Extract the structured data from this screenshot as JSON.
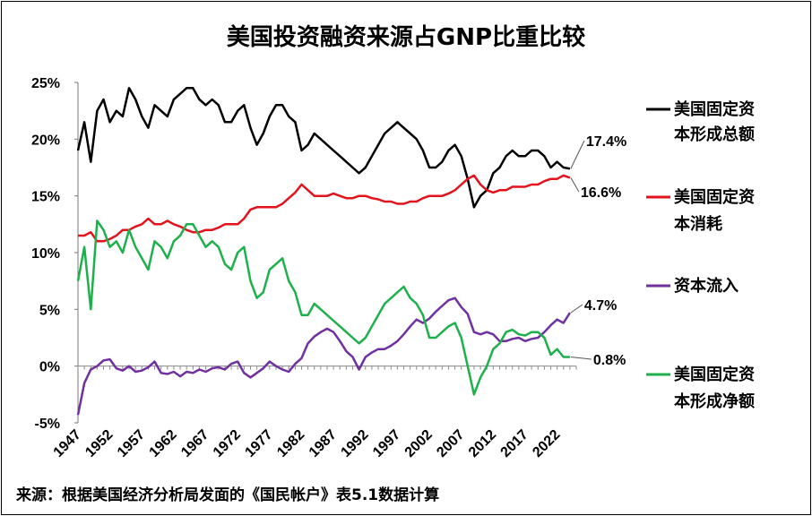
{
  "chart_data": {
    "type": "line",
    "title": "美国投资融资来源占GNP比重比较",
    "source": "来源：根据美国经济分析局发面的《国民帐户》表5.1数据计算",
    "x_ticks": [
      "1947",
      "1952",
      "1957",
      "1962",
      "1967",
      "1972",
      "1977",
      "1982",
      "1987",
      "1992",
      "1997",
      "2002",
      "2007",
      "2012",
      "2017",
      "2022"
    ],
    "y_ticks": [
      "25%",
      "20%",
      "15%",
      "10%",
      "5%",
      "0%",
      "-5%"
    ],
    "ylim": [
      -5,
      25
    ],
    "xlim": [
      1947,
      2025
    ],
    "grid": false,
    "legend_position": "right",
    "series": [
      {
        "name": "美国固定资本形成总额",
        "name_lines": [
          "美国固定资",
          "本形成总额"
        ],
        "color": "#000000",
        "end_label": "17.4%",
        "x": [
          1947,
          1948,
          1949,
          1950,
          1951,
          1952,
          1953,
          1954,
          1955,
          1956,
          1957,
          1958,
          1959,
          1960,
          1961,
          1962,
          1963,
          1964,
          1965,
          1966,
          1967,
          1968,
          1969,
          1970,
          1971,
          1972,
          1973,
          1974,
          1975,
          1976,
          1977,
          1978,
          1979,
          1980,
          1981,
          1982,
          1983,
          1984,
          1985,
          1986,
          1987,
          1988,
          1989,
          1990,
          1991,
          1992,
          1993,
          1994,
          1995,
          1996,
          1997,
          1998,
          1999,
          2000,
          2001,
          2002,
          2003,
          2004,
          2005,
          2006,
          2007,
          2008,
          2009,
          2010,
          2011,
          2012,
          2013,
          2014,
          2015,
          2016,
          2017,
          2018,
          2019,
          2020,
          2021,
          2022,
          2023,
          2024
        ],
        "values": [
          19.0,
          21.5,
          18.0,
          22.5,
          23.5,
          21.5,
          22.5,
          22.0,
          24.5,
          23.5,
          22.0,
          21.0,
          23.0,
          22.5,
          22.0,
          23.5,
          24.0,
          24.5,
          24.5,
          23.5,
          23.0,
          23.5,
          23.0,
          21.5,
          21.5,
          22.5,
          23.0,
          21.0,
          19.5,
          20.5,
          22.0,
          23.0,
          23.0,
          22.0,
          21.5,
          19.0,
          19.5,
          20.5,
          20.0,
          19.5,
          19.0,
          18.5,
          18.0,
          17.5,
          17.0,
          17.5,
          18.5,
          19.5,
          20.5,
          21.0,
          21.5,
          21.0,
          20.5,
          20.0,
          19.0,
          17.5,
          17.5,
          18.0,
          19.0,
          19.5,
          18.5,
          16.5,
          14.0,
          15.0,
          15.5,
          17.0,
          17.5,
          18.5,
          19.0,
          18.5,
          18.5,
          19.0,
          19.0,
          18.5,
          17.5,
          18.0,
          17.5,
          17.4
        ]
      },
      {
        "name": "美国固定资本消耗",
        "name_lines": [
          "美国固定资",
          "本消耗"
        ],
        "color": "#e3121b",
        "end_label": "16.6%",
        "x": [
          1947,
          1948,
          1949,
          1950,
          1951,
          1952,
          1953,
          1954,
          1955,
          1956,
          1957,
          1958,
          1959,
          1960,
          1961,
          1962,
          1963,
          1964,
          1965,
          1966,
          1967,
          1968,
          1969,
          1970,
          1971,
          1972,
          1973,
          1974,
          1975,
          1976,
          1977,
          1978,
          1979,
          1980,
          1981,
          1982,
          1983,
          1984,
          1985,
          1986,
          1987,
          1988,
          1989,
          1990,
          1991,
          1992,
          1993,
          1994,
          1995,
          1996,
          1997,
          1998,
          1999,
          2000,
          2001,
          2002,
          2003,
          2004,
          2005,
          2006,
          2007,
          2008,
          2009,
          2010,
          2011,
          2012,
          2013,
          2014,
          2015,
          2016,
          2017,
          2018,
          2019,
          2020,
          2021,
          2022,
          2023,
          2024
        ],
        "values": [
          11.5,
          11.5,
          11.8,
          11.0,
          11.0,
          11.2,
          11.5,
          12.0,
          12.0,
          12.3,
          12.5,
          13.0,
          12.5,
          12.5,
          12.8,
          12.5,
          12.3,
          12.0,
          11.8,
          11.8,
          12.0,
          12.0,
          12.2,
          12.5,
          12.5,
          12.5,
          13.0,
          13.8,
          14.0,
          14.0,
          14.0,
          14.0,
          14.3,
          14.8,
          15.3,
          16.0,
          15.5,
          15.0,
          15.0,
          15.0,
          15.2,
          15.0,
          14.8,
          14.8,
          15.0,
          15.0,
          14.8,
          14.7,
          14.5,
          14.5,
          14.3,
          14.3,
          14.5,
          14.5,
          14.8,
          15.0,
          15.0,
          15.0,
          15.2,
          15.5,
          16.0,
          16.5,
          16.8,
          16.0,
          15.5,
          15.3,
          15.5,
          15.5,
          15.8,
          15.8,
          15.8,
          16.0,
          16.0,
          16.3,
          16.5,
          16.5,
          16.8,
          16.6
        ]
      },
      {
        "name": "资本流入",
        "name_lines": [
          "资本流入"
        ],
        "color": "#7030a0",
        "end_label": "4.7%",
        "x": [
          1947,
          1948,
          1949,
          1950,
          1951,
          1952,
          1953,
          1954,
          1955,
          1956,
          1957,
          1958,
          1959,
          1960,
          1961,
          1962,
          1963,
          1964,
          1965,
          1966,
          1967,
          1968,
          1969,
          1970,
          1971,
          1972,
          1973,
          1974,
          1975,
          1976,
          1977,
          1978,
          1979,
          1980,
          1981,
          1982,
          1983,
          1984,
          1985,
          1986,
          1987,
          1988,
          1989,
          1990,
          1991,
          1992,
          1993,
          1994,
          1995,
          1996,
          1997,
          1998,
          1999,
          2000,
          2001,
          2002,
          2003,
          2004,
          2005,
          2006,
          2007,
          2008,
          2009,
          2010,
          2011,
          2012,
          2013,
          2014,
          2015,
          2016,
          2017,
          2018,
          2019,
          2020,
          2021,
          2022,
          2023,
          2024
        ],
        "values": [
          -4.3,
          -1.5,
          -0.3,
          0.0,
          0.5,
          0.6,
          -0.2,
          -0.4,
          0.0,
          -0.5,
          -0.4,
          -0.1,
          0.4,
          -0.6,
          -0.7,
          -0.5,
          -0.9,
          -0.5,
          -0.6,
          -0.3,
          -0.5,
          -0.2,
          -0.1,
          -0.3,
          0.2,
          0.4,
          -0.6,
          -1.0,
          -0.6,
          -0.2,
          0.4,
          0.0,
          -0.3,
          -0.5,
          0.2,
          0.7,
          2.0,
          2.6,
          3.0,
          3.3,
          3.0,
          2.2,
          1.3,
          0.8,
          -0.3,
          0.8,
          1.2,
          1.5,
          1.5,
          1.8,
          2.2,
          2.8,
          3.5,
          4.1,
          3.8,
          4.2,
          4.8,
          5.3,
          5.8,
          6.0,
          5.2,
          4.6,
          3.0,
          2.8,
          3.0,
          2.8,
          2.2,
          2.2,
          2.4,
          2.5,
          2.2,
          2.4,
          2.5,
          3.0,
          3.6,
          4.1,
          3.8,
          4.7
        ]
      },
      {
        "name": "美国固定资本形成净额",
        "name_lines": [
          "美国固定资",
          "本形成净额"
        ],
        "color": "#1db04b",
        "end_label": "0.8%",
        "x": [
          1947,
          1948,
          1949,
          1950,
          1951,
          1952,
          1953,
          1954,
          1955,
          1956,
          1957,
          1958,
          1959,
          1960,
          1961,
          1962,
          1963,
          1964,
          1965,
          1966,
          1967,
          1968,
          1969,
          1970,
          1971,
          1972,
          1973,
          1974,
          1975,
          1976,
          1977,
          1978,
          1979,
          1980,
          1981,
          1982,
          1983,
          1984,
          1985,
          1986,
          1987,
          1988,
          1989,
          1990,
          1991,
          1992,
          1993,
          1994,
          1995,
          1996,
          1997,
          1998,
          1999,
          2000,
          2001,
          2002,
          2003,
          2004,
          2005,
          2006,
          2007,
          2008,
          2009,
          2010,
          2011,
          2012,
          2013,
          2014,
          2015,
          2016,
          2017,
          2018,
          2019,
          2020,
          2021,
          2022,
          2023,
          2024
        ],
        "values": [
          7.5,
          10.5,
          5.0,
          12.8,
          12.0,
          10.5,
          11.0,
          10.0,
          12.0,
          10.5,
          9.5,
          8.5,
          11.0,
          10.5,
          9.5,
          11.0,
          11.5,
          12.5,
          12.5,
          11.5,
          10.5,
          11.0,
          10.5,
          9.0,
          8.5,
          10.0,
          10.5,
          7.5,
          6.0,
          6.5,
          8.5,
          9.0,
          9.5,
          7.5,
          6.5,
          4.5,
          4.5,
          5.5,
          5.0,
          4.5,
          4.0,
          3.5,
          3.0,
          2.5,
          2.0,
          2.5,
          3.5,
          4.5,
          5.5,
          6.0,
          6.5,
          7.0,
          6.0,
          5.5,
          4.5,
          2.5,
          2.5,
          3.0,
          3.5,
          3.8,
          2.5,
          0.0,
          -2.5,
          -1.0,
          0.0,
          1.5,
          2.0,
          3.0,
          3.2,
          2.8,
          2.7,
          3.0,
          3.0,
          2.5,
          1.0,
          1.5,
          0.8,
          0.8
        ]
      }
    ]
  }
}
